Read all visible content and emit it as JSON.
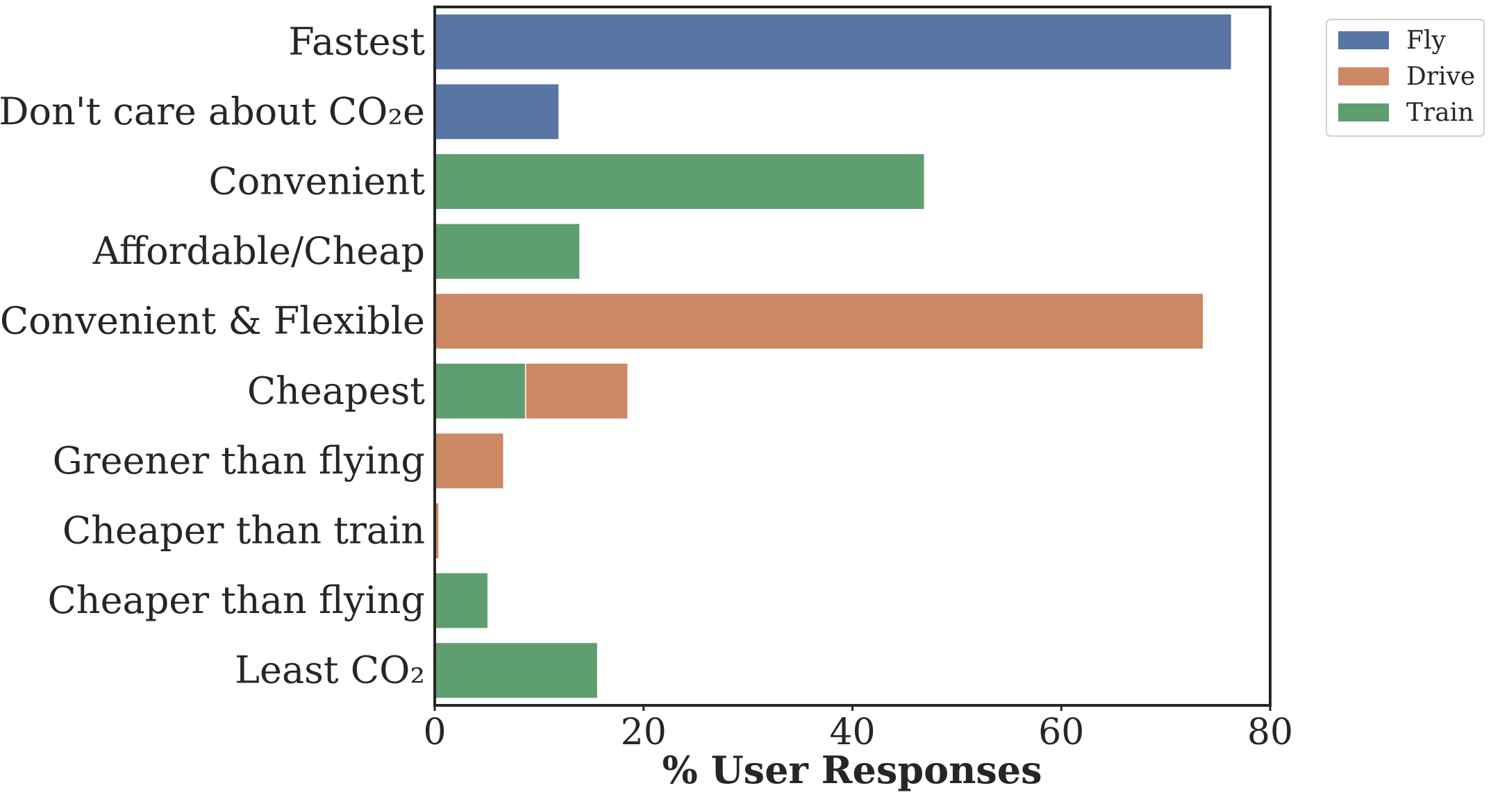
{
  "chart_data": {
    "type": "bar",
    "orientation": "horizontal",
    "stacked": true,
    "xlabel": "% User Responses",
    "ylabel": "",
    "xlim": [
      0,
      80
    ],
    "xticks": [
      "0",
      "20",
      "40",
      "60",
      "80"
    ],
    "grid": false,
    "legend_position": "outside-top-right",
    "categories": [
      "Fastest",
      "Don't care about CO₂e",
      "Convenient",
      "Affordable/Cheap",
      "Convenient & Flexible",
      "Cheapest",
      "Greener than flying",
      "Cheaper than train",
      "Cheaper than flying",
      "Least CO₂"
    ],
    "series": [
      {
        "name": "Fly",
        "color": "#5875a4",
        "values": [
          76.3,
          11.9,
          0,
          0,
          0,
          0,
          0,
          0,
          0,
          0
        ]
      },
      {
        "name": "Train",
        "color": "#5f9e6e",
        "values": [
          0,
          0,
          46.9,
          13.9,
          0,
          8.7,
          0,
          0,
          5.1,
          15.6
        ]
      },
      {
        "name": "Drive",
        "color": "#cc8963",
        "values": [
          0,
          0,
          0,
          0,
          73.6,
          9.8,
          6.6,
          0.4,
          0,
          0
        ]
      }
    ],
    "legend_order": [
      "Fly",
      "Drive",
      "Train"
    ]
  }
}
